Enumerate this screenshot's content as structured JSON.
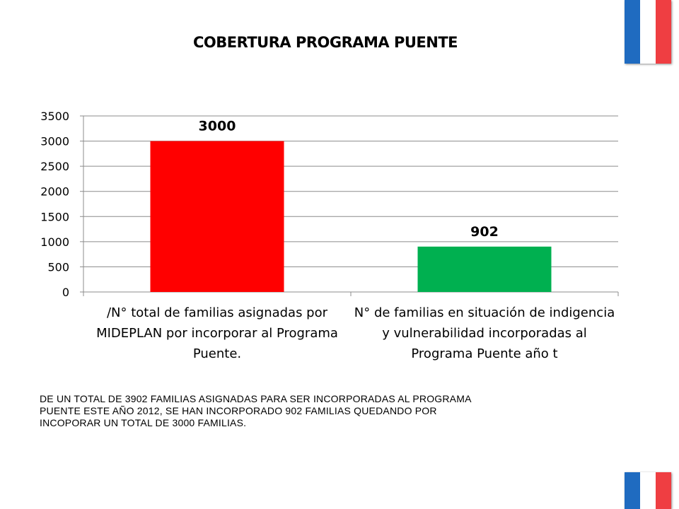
{
  "chart_data": {
    "type": "bar",
    "title": "COBERTURA PROGRAMA PUENTE",
    "categories": [
      "/N° total de familias asignadas por MIDEPLAN por incorporar al Programa Puente.",
      "N° de familias en situación de indigencia y vulnerabilidad incorporadas al Programa Puente año t"
    ],
    "values": [
      3000,
      902
    ],
    "data_labels": [
      "3000",
      "902"
    ],
    "bar_colors": [
      "#ff0000",
      "#00b050"
    ],
    "ylim": [
      0,
      3500
    ],
    "y_ticks": [
      0,
      500,
      1000,
      1500,
      2000,
      2500,
      3000,
      3500
    ],
    "grid": true,
    "legend": "none"
  },
  "note": {
    "line1": "DE UN TOTAL DE 3902 FAMILIAS ASIGNADAS PARA SER INCORPORADAS AL PROGRAMA",
    "line2": "PUENTE ESTE AÑO 2012, SE HAN INCORPORADO 902 FAMILIAS QUEDANDO POR",
    "line3": "INCOPORAR UN TOTAL DE 3000 FAMILIAS."
  },
  "flag_colors": [
    "#1f6bc0",
    "#ffffff",
    "#ef3e42"
  ]
}
